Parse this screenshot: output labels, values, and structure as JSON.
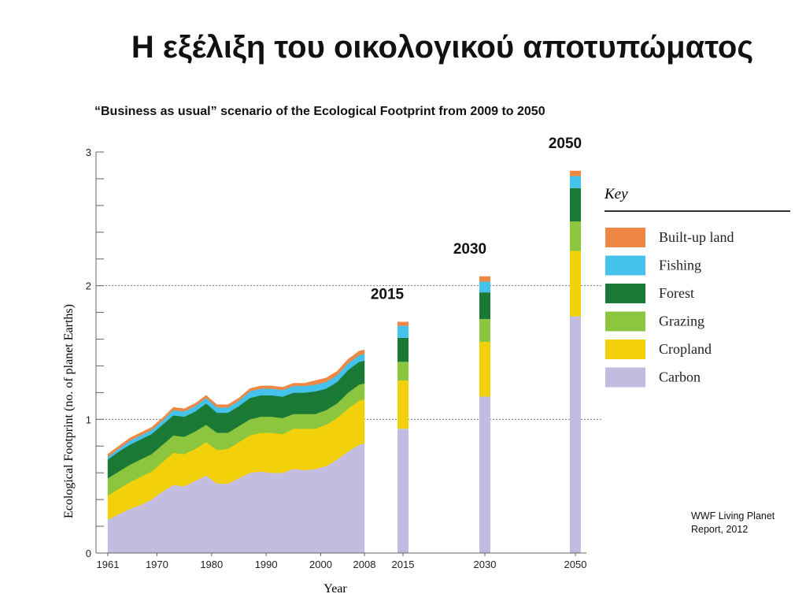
{
  "slide": {
    "title": "Η εξέλιξη του οικολογικού αποτυπώματος",
    "source": "WWF Living Planet Report, 2012"
  },
  "chart_data": {
    "type": "area",
    "title": "“Business as usual” scenario of the Ecological Footprint from 2009 to 2050",
    "xlabel": "Year",
    "ylabel": "Ecological Footprint (no. of planet Earths)",
    "ylim": [
      0,
      3
    ],
    "yticks": [
      "0",
      "1",
      "2",
      "3"
    ],
    "reference_lines": [
      1,
      2
    ],
    "legend_title": "Key",
    "legend_position": "right",
    "series_order": [
      "Carbon",
      "Cropland",
      "Grazing",
      "Forest",
      "Fishing",
      "Built-up land"
    ],
    "colors": {
      "Carbon": "#c2bce0",
      "Cropland": "#f2d00a",
      "Grazing": "#8cc63f",
      "Forest": "#1a7a35",
      "Fishing": "#45c2ec",
      "Built-up land": "#ef8845"
    },
    "historical": {
      "xticks": [
        "1961",
        "1970",
        "1980",
        "1990",
        "2000",
        "2008"
      ],
      "years": [
        1961,
        1963,
        1965,
        1967,
        1969,
        1971,
        1973,
        1975,
        1977,
        1979,
        1981,
        1983,
        1985,
        1987,
        1989,
        1991,
        1993,
        1995,
        1997,
        1999,
        2001,
        2003,
        2005,
        2007,
        2008
      ],
      "series": [
        {
          "name": "Carbon",
          "values": [
            0.25,
            0.29,
            0.33,
            0.36,
            0.4,
            0.46,
            0.51,
            0.5,
            0.54,
            0.58,
            0.52,
            0.52,
            0.56,
            0.6,
            0.61,
            0.6,
            0.6,
            0.63,
            0.62,
            0.63,
            0.65,
            0.7,
            0.76,
            0.81,
            0.82
          ]
        },
        {
          "name": "Cropland",
          "values": [
            0.18,
            0.19,
            0.2,
            0.21,
            0.21,
            0.22,
            0.24,
            0.24,
            0.24,
            0.25,
            0.25,
            0.26,
            0.27,
            0.28,
            0.29,
            0.3,
            0.29,
            0.3,
            0.31,
            0.3,
            0.31,
            0.31,
            0.32,
            0.33,
            0.33
          ]
        },
        {
          "name": "Grazing",
          "values": [
            0.13,
            0.13,
            0.13,
            0.13,
            0.13,
            0.13,
            0.13,
            0.13,
            0.13,
            0.13,
            0.13,
            0.12,
            0.12,
            0.12,
            0.12,
            0.12,
            0.12,
            0.11,
            0.11,
            0.11,
            0.11,
            0.11,
            0.12,
            0.12,
            0.12
          ]
        },
        {
          "name": "Forest",
          "values": [
            0.14,
            0.15,
            0.15,
            0.15,
            0.15,
            0.15,
            0.15,
            0.15,
            0.15,
            0.16,
            0.15,
            0.15,
            0.15,
            0.16,
            0.16,
            0.16,
            0.16,
            0.16,
            0.16,
            0.17,
            0.16,
            0.16,
            0.17,
            0.17,
            0.17
          ]
        },
        {
          "name": "Fishing",
          "values": [
            0.02,
            0.02,
            0.03,
            0.03,
            0.03,
            0.03,
            0.04,
            0.04,
            0.04,
            0.04,
            0.04,
            0.04,
            0.04,
            0.05,
            0.05,
            0.05,
            0.05,
            0.05,
            0.05,
            0.05,
            0.05,
            0.05,
            0.05,
            0.05,
            0.05
          ]
        },
        {
          "name": "Built-up land",
          "values": [
            0.02,
            0.02,
            0.02,
            0.02,
            0.02,
            0.02,
            0.02,
            0.02,
            0.02,
            0.02,
            0.02,
            0.02,
            0.02,
            0.02,
            0.02,
            0.02,
            0.02,
            0.02,
            0.02,
            0.03,
            0.03,
            0.03,
            0.03,
            0.03,
            0.03
          ]
        }
      ]
    },
    "projections": [
      {
        "year": "2015",
        "label": "2015",
        "values": {
          "Carbon": 0.93,
          "Cropland": 0.36,
          "Grazing": 0.14,
          "Forest": 0.18,
          "Fishing": 0.09,
          "Built-up land": 0.03
        }
      },
      {
        "year": "2030",
        "label": "2030",
        "values": {
          "Carbon": 1.17,
          "Cropland": 0.41,
          "Grazing": 0.17,
          "Forest": 0.2,
          "Fishing": 0.08,
          "Built-up land": 0.04
        }
      },
      {
        "year": "2050",
        "label": "2050",
        "values": {
          "Carbon": 1.77,
          "Cropland": 0.49,
          "Grazing": 0.22,
          "Forest": 0.25,
          "Fishing": 0.09,
          "Built-up land": 0.04
        }
      }
    ]
  }
}
